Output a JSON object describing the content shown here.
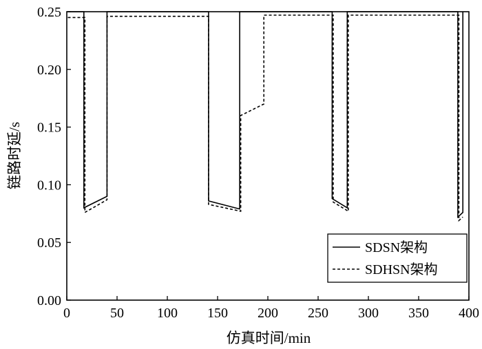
{
  "chart_data": {
    "type": "line",
    "title": "",
    "xlabel": "仿真时间/min",
    "ylabel": "链路时延/s",
    "xlim": [
      0,
      400
    ],
    "ylim": [
      0,
      0.25
    ],
    "xticks": [
      0,
      50,
      100,
      150,
      200,
      250,
      300,
      350,
      400
    ],
    "xtick_labels": [
      "0",
      "50",
      "100",
      "150",
      "200",
      "250",
      "300",
      "350",
      "400"
    ],
    "yticks": [
      0,
      0.05,
      0.1,
      0.15,
      0.2,
      0.25
    ],
    "ytick_labels": [
      "0.00",
      "0.05",
      "0.10",
      "0.15",
      "0.20",
      "0.25"
    ],
    "grid": false,
    "legend_position": "bottom-right",
    "series": [
      {
        "name": "SDSN架构",
        "style": "solid",
        "color": "#000000",
        "x": [
          1,
          17,
          17,
          40,
          40,
          141,
          141,
          172,
          172,
          264,
          264,
          279,
          279,
          389,
          389,
          394,
          394
        ],
        "y": [
          0.25,
          0.25,
          0.08,
          0.09,
          0.25,
          0.25,
          0.086,
          0.079,
          0.25,
          0.25,
          0.088,
          0.08,
          0.25,
          0.25,
          0.072,
          0.076,
          0.25
        ]
      },
      {
        "name": "SDHSN架构",
        "style": "dashed",
        "color": "#000000",
        "x": [
          1,
          18,
          18,
          40,
          40,
          141,
          141,
          173,
          173,
          196,
          196,
          265,
          265,
          280,
          280,
          390,
          390,
          394
        ],
        "y": [
          0.245,
          0.245,
          0.076,
          0.087,
          0.246,
          0.246,
          0.083,
          0.077,
          0.16,
          0.17,
          0.247,
          0.247,
          0.085,
          0.077,
          0.247,
          0.247,
          0.069,
          0.072
        ]
      }
    ]
  }
}
